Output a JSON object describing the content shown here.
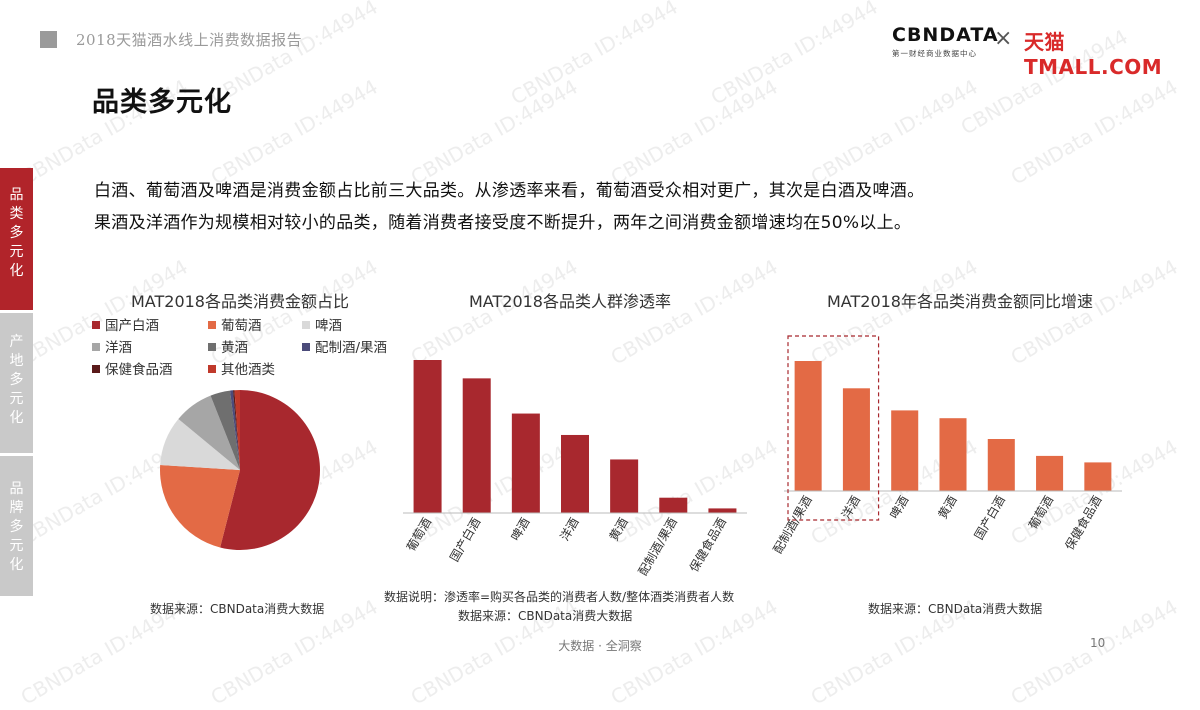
{
  "header": {
    "report_title": "2018天猫酒水线上消费数据报告",
    "brand_cbn": "CBNDATA",
    "brand_cbn_sub": "第一财经商业数据中心",
    "brand_x": "×",
    "brand_tmall": "天猫TMALL.COM"
  },
  "page_heading": "品类多元化",
  "side_tabs": [
    "品类多元化",
    "产地多元化",
    "品牌多元化"
  ],
  "description": [
    "白酒、葡萄酒及啤酒是消费金额占比前三大品类。从渗透率来看，葡萄酒受众相对更广，其次是白酒及啤酒。",
    "果酒及洋酒作为规模相对较小的品类，随着消费者接受度不断提升，两年之间消费金额增速均在50%以上。"
  ],
  "watermark": "CBNData ID:44944",
  "chart_data": [
    {
      "type": "pie",
      "title": "MAT2018各品类消费金额占比",
      "slices": [
        {
          "label": "国产白酒",
          "value": 54,
          "color": "#a8282e"
        },
        {
          "label": "葡萄酒",
          "value": 22,
          "color": "#e36a45"
        },
        {
          "label": "啤酒",
          "value": 10,
          "color": "#d9d9d9"
        },
        {
          "label": "洋酒",
          "value": 8,
          "color": "#a6a6a6"
        },
        {
          "label": "黄酒",
          "value": 4,
          "color": "#6f6f6f"
        },
        {
          "label": "配制酒/果酒",
          "value": 0.6,
          "color": "#4b4b7a"
        },
        {
          "label": "保健食品酒",
          "value": 0.3,
          "color": "#5a1a1a"
        },
        {
          "label": "其他酒类",
          "value": 1.1,
          "color": "#c0392b"
        }
      ],
      "source": "数据来源：CBNData消费大数据"
    },
    {
      "type": "bar",
      "title": "MAT2018各品类人群渗透率",
      "categories": [
        "葡萄酒",
        "国产白酒",
        "啤酒",
        "洋酒",
        "黄酒",
        "配制酒/果酒",
        "保健食品酒"
      ],
      "values": [
        100,
        88,
        65,
        51,
        35,
        10,
        3
      ],
      "color": "#a8282e",
      "note": "数据说明：渗透率=购买各品类的消费者人数/整体酒类消费者人数",
      "source": "数据来源：CBNData消费大数据"
    },
    {
      "type": "bar",
      "title": "MAT2018年各品类消费金额同比增速",
      "categories": [
        "配制酒/果酒",
        "洋酒",
        "啤酒",
        "黄酒",
        "国产白酒",
        "葡萄酒",
        "保健食品酒"
      ],
      "values": [
        100,
        79,
        62,
        56,
        40,
        27,
        22
      ],
      "color": "#e36a45",
      "highlight_range": [
        0,
        1
      ],
      "source": "数据来源：CBNData消费大数据"
    }
  ],
  "footer": {
    "text": "大数据 · 全洞察",
    "page_number": "10"
  }
}
